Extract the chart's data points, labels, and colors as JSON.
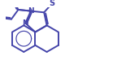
{
  "bg_color": "#ffffff",
  "bond_color": "#4444aa",
  "line_width": 1.4,
  "figsize": [
    1.44,
    0.95
  ],
  "dpi": 100,
  "label_N": "N",
  "label_S": "S",
  "font_size": 6.5
}
